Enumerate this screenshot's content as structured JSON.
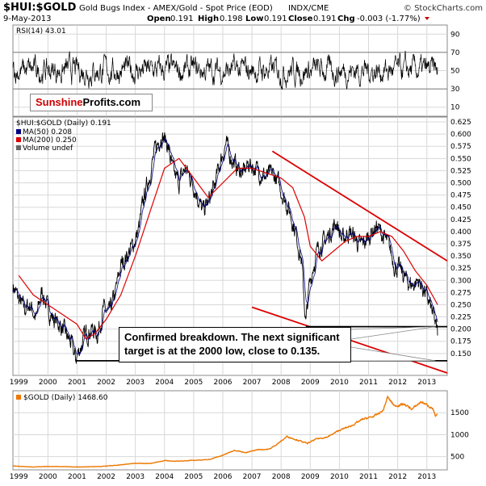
{
  "header": {
    "symbol": "$HUI:$GOLD",
    "name": "Gold Bugs Index - AMEX/Gold - Spot Price (EOD)",
    "exchange": "INDX/CME",
    "copyright": "© StockCharts.com",
    "date": "9-May-2013",
    "open_label": "Open",
    "open": "0.191",
    "high_label": "High",
    "high": "0.198",
    "low_label": "Low",
    "low": "0.191",
    "close_label": "Close",
    "close": "0.191",
    "chg_label": "Chg",
    "chg": "-0.003 (-1.77%)"
  },
  "logo": {
    "part1": "Sunshine",
    "part2": "Profits.com"
  },
  "annotation": {
    "line1": "Confirmed breakdown. The next significant",
    "line2": "target is at the 2000 low, close to 0.135."
  },
  "legend_main": {
    "series": "$HUI:$GOLD (Daily) 0.191",
    "ma50": "MA(50) 0.208",
    "ma200": "MA(200) 0.250",
    "volume": "Volume undef"
  },
  "legend_rsi": "RSI(14) 43.01",
  "legend_gold": "$GOLD (Daily) 1468.60",
  "colors": {
    "price": "#000000",
    "ma50": "#000080",
    "ma200": "#dd0000",
    "trend": "#dd0000",
    "gold": "#ee7700",
    "grid": "#d8d8d8"
  },
  "chart_data": [
    {
      "type": "line",
      "title": "RSI(14) 43.01",
      "ylim": [
        0,
        100
      ],
      "yticks": [
        10,
        30,
        50,
        70,
        90
      ],
      "reference_lines": [
        30,
        70
      ],
      "current": 43.01
    },
    {
      "type": "line",
      "title": "$HUI:$GOLD (Daily) 0.191",
      "ylim": [
        0.105,
        0.635
      ],
      "yticks": [
        0.15,
        0.175,
        0.2,
        0.225,
        0.25,
        0.275,
        0.3,
        0.325,
        0.35,
        0.375,
        0.4,
        0.425,
        0.45,
        0.475,
        0.5,
        0.525,
        0.55,
        0.575,
        0.6,
        0.625
      ],
      "xlim": [
        1998.8,
        2013.7
      ],
      "xticks": [
        "1999",
        "2000",
        "2001",
        "2002",
        "2003",
        "2004",
        "2005",
        "2006",
        "2007",
        "2008",
        "2009",
        "2010",
        "2011",
        "2012",
        "2013"
      ],
      "series": [
        {
          "name": "$HUI:$GOLD",
          "x": [
            1998.8,
            1999.0,
            1999.2,
            1999.4,
            1999.6,
            1999.8,
            2000.0,
            2000.2,
            2000.4,
            2000.6,
            2000.8,
            2000.95,
            2001.1,
            2001.3,
            2001.5,
            2001.7,
            2001.9,
            2002.1,
            2002.3,
            2002.5,
            2002.7,
            2002.9,
            2003.1,
            2003.3,
            2003.5,
            2003.7,
            2003.9,
            2004.1,
            2004.3,
            2004.5,
            2004.7,
            2004.9,
            2005.1,
            2005.3,
            2005.5,
            2005.7,
            2005.9,
            2006.1,
            2006.3,
            2006.5,
            2006.7,
            2006.9,
            2007.1,
            2007.3,
            2007.5,
            2007.7,
            2007.9,
            2008.1,
            2008.3,
            2008.5,
            2008.7,
            2008.85,
            2008.95,
            2009.1,
            2009.3,
            2009.5,
            2009.7,
            2009.9,
            2010.1,
            2010.3,
            2010.5,
            2010.7,
            2010.9,
            2011.1,
            2011.3,
            2011.5,
            2011.7,
            2011.9,
            2012.1,
            2012.3,
            2012.5,
            2012.7,
            2012.9,
            2013.1,
            2013.25,
            2013.37
          ],
          "values": [
            0.29,
            0.26,
            0.24,
            0.25,
            0.22,
            0.28,
            0.24,
            0.22,
            0.21,
            0.19,
            0.17,
            0.138,
            0.16,
            0.19,
            0.2,
            0.19,
            0.24,
            0.23,
            0.27,
            0.33,
            0.35,
            0.37,
            0.4,
            0.47,
            0.52,
            0.57,
            0.6,
            0.58,
            0.52,
            0.5,
            0.53,
            0.51,
            0.48,
            0.44,
            0.46,
            0.49,
            0.54,
            0.58,
            0.55,
            0.53,
            0.52,
            0.54,
            0.53,
            0.52,
            0.51,
            0.52,
            0.5,
            0.47,
            0.44,
            0.4,
            0.34,
            0.21,
            0.28,
            0.33,
            0.37,
            0.38,
            0.4,
            0.42,
            0.38,
            0.4,
            0.39,
            0.37,
            0.38,
            0.4,
            0.41,
            0.39,
            0.37,
            0.33,
            0.32,
            0.3,
            0.29,
            0.3,
            0.28,
            0.25,
            0.22,
            0.19
          ]
        },
        {
          "name": "MA(50)",
          "current": 0.208
        },
        {
          "name": "MA(200)",
          "x": [
            1999.0,
            1999.5,
            2000.0,
            2000.5,
            2001.0,
            2001.3,
            2001.6,
            2002.0,
            2002.5,
            2003.0,
            2003.5,
            2004.0,
            2004.5,
            2005.0,
            2005.5,
            2006.0,
            2006.5,
            2007.0,
            2007.5,
            2008.0,
            2008.4,
            2008.8,
            2009.0,
            2009.4,
            2009.8,
            2010.2,
            2010.6,
            2011.0,
            2011.4,
            2011.8,
            2012.2,
            2012.6,
            2013.0,
            2013.37
          ],
          "values": [
            0.31,
            0.27,
            0.25,
            0.23,
            0.21,
            0.18,
            0.19,
            0.22,
            0.27,
            0.35,
            0.44,
            0.53,
            0.55,
            0.51,
            0.47,
            0.5,
            0.53,
            0.53,
            0.52,
            0.51,
            0.49,
            0.43,
            0.37,
            0.34,
            0.36,
            0.38,
            0.39,
            0.39,
            0.4,
            0.39,
            0.36,
            0.32,
            0.29,
            0.25
          ]
        }
      ],
      "trendlines": [
        {
          "name": "upper-channel",
          "color": "red",
          "from": [
            2007.7,
            0.565
          ],
          "to": [
            2013.7,
            0.34
          ]
        },
        {
          "name": "lower-channel",
          "color": "red",
          "from": [
            2007.0,
            0.245
          ],
          "to": [
            2013.7,
            0.11
          ]
        },
        {
          "name": "support-2008-low",
          "color": "black",
          "from": [
            2008.85,
            0.205
          ],
          "to": [
            2013.7,
            0.205
          ]
        },
        {
          "name": "support-2000-low",
          "color": "black",
          "from": [
            2000.95,
            0.135
          ],
          "to": [
            2013.7,
            0.135
          ]
        }
      ]
    },
    {
      "type": "line",
      "title": "$GOLD (Daily) 1468.60",
      "ylim": [
        200,
        2000
      ],
      "yticks": [
        500,
        1000,
        1500
      ],
      "series": [
        {
          "name": "$GOLD",
          "x": [
            1998.8,
            1999.5,
            2000.0,
            2000.5,
            2001.0,
            2001.5,
            2002.0,
            2002.5,
            2003.0,
            2003.5,
            2004.0,
            2004.5,
            2005.0,
            2005.5,
            2006.0,
            2006.4,
            2006.8,
            2007.2,
            2007.6,
            2008.0,
            2008.2,
            2008.6,
            2008.9,
            2009.2,
            2009.6,
            2010.0,
            2010.4,
            2010.8,
            2011.2,
            2011.5,
            2011.65,
            2011.9,
            2012.2,
            2012.5,
            2012.8,
            2013.0,
            2013.2,
            2013.3,
            2013.37
          ],
          "values": [
            290,
            265,
            280,
            275,
            265,
            270,
            285,
            315,
            350,
            345,
            410,
            395,
            420,
            430,
            530,
            650,
            590,
            660,
            670,
            850,
            960,
            870,
            800,
            900,
            950,
            1100,
            1200,
            1350,
            1420,
            1550,
            1850,
            1650,
            1700,
            1580,
            1750,
            1680,
            1600,
            1400,
            1468.6
          ]
        }
      ]
    }
  ]
}
